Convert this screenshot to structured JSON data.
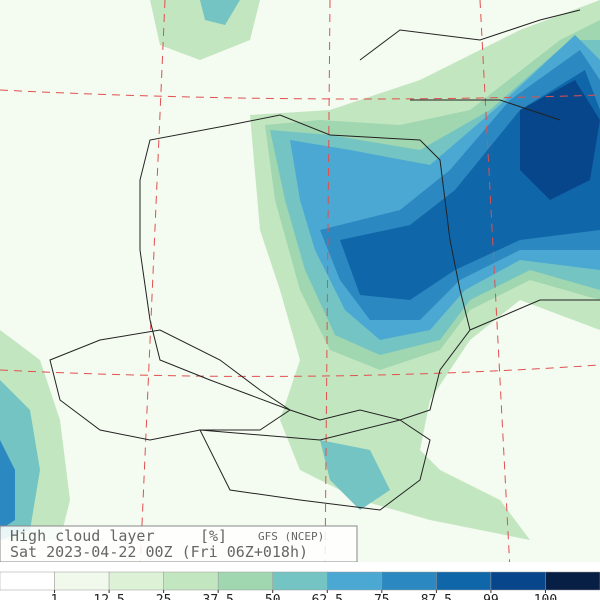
{
  "header": {
    "title": "High cloud layer",
    "unit": "[%]",
    "model": "GFS (NCEP)",
    "run": "Sat 2023-04-22 00Z (Fri 06Z+018h)"
  },
  "legend": {
    "levels": [
      1,
      12.5,
      25,
      37.5,
      50,
      62.5,
      75,
      87.5,
      99,
      100
    ],
    "colors": [
      "#ffffff",
      "#f1f9ec",
      "#dcf1d6",
      "#c2e6bf",
      "#a0d6b0",
      "#74c4c3",
      "#4aa8d2",
      "#2c88c0",
      "#0f67aa",
      "#08468c",
      "#071e45"
    ]
  }
}
